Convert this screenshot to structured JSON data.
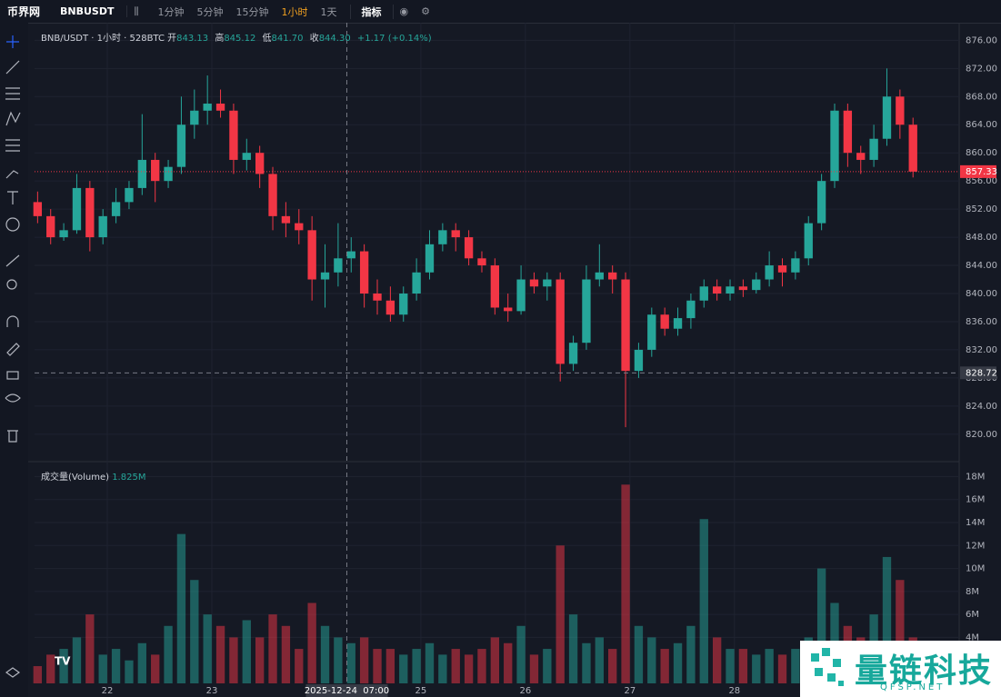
{
  "toolbar": {
    "logo": "币界网",
    "symbol": "BNBUSDT",
    "intervals": [
      "1分钟",
      "5分钟",
      "15分钟",
      "1小时",
      "1天"
    ],
    "active_interval": 3,
    "indicators": "指标"
  },
  "chart_data": {
    "type": "candlestick",
    "title": "BNB/USDT · 1小时 · 528BTC",
    "legend": {
      "open_label": "开",
      "open": 843.13,
      "high_label": "高",
      "high": 845.12,
      "low_label": "低",
      "low": {
        "value": 841.7,
        "label": "841.70"
      },
      "close_label": "收",
      "close": {
        "value": 844.3,
        "label": "844.30"
      },
      "change": "+1.17 (+0.14%)"
    },
    "up_color": "#26a69a",
    "down_color": "#f23645",
    "x": [
      -16,
      -13,
      -10,
      -7,
      -4,
      -1,
      2,
      5,
      8,
      11,
      14,
      17,
      20,
      23,
      26,
      29,
      32,
      35,
      38,
      41,
      44,
      47,
      50,
      53,
      56,
      59,
      62,
      65,
      68,
      71,
      74,
      77,
      80,
      83,
      86,
      89,
      92,
      95,
      98,
      101,
      104,
      107,
      110,
      113,
      116,
      119,
      122,
      125,
      128,
      131,
      134,
      137,
      140,
      143,
      146,
      149,
      152,
      155,
      158,
      161,
      164,
      167,
      170,
      173,
      176,
      179,
      182,
      185
    ],
    "open": [
      853,
      851,
      848,
      849,
      855,
      848,
      851,
      853,
      855,
      859,
      856,
      858,
      864,
      866,
      867,
      866,
      859,
      860,
      857,
      851,
      850,
      849,
      842,
      843,
      845,
      846,
      840,
      839,
      837,
      840,
      843,
      847,
      849,
      848,
      845,
      844,
      838,
      837.5,
      842,
      841,
      842,
      830,
      833,
      842,
      843,
      842,
      829,
      832,
      837,
      835,
      836.5,
      839,
      841,
      840,
      841,
      840.5,
      842,
      844,
      843,
      845,
      850,
      856,
      866,
      860,
      859,
      862,
      868,
      864
    ],
    "high": [
      854.5,
      852,
      850,
      857,
      856,
      852,
      855,
      856,
      865.5,
      860,
      859,
      868,
      869,
      871,
      869,
      867,
      862,
      861,
      858,
      853,
      852,
      851,
      847,
      850,
      848,
      847,
      842,
      841,
      841,
      845,
      849,
      850,
      850,
      849,
      846,
      845,
      840,
      844,
      843,
      843,
      843,
      834,
      844,
      847,
      844,
      843,
      833,
      838,
      838,
      838,
      840,
      842,
      842,
      842,
      842,
      843,
      846,
      845,
      846,
      851,
      857,
      867,
      867,
      861,
      864,
      872,
      869,
      865
    ],
    "low": [
      850,
      847,
      847.5,
      848.5,
      846,
      847,
      850,
      852,
      854,
      853,
      855,
      857,
      862,
      864,
      865,
      857,
      857.5,
      855,
      849,
      848,
      847,
      839,
      838,
      841,
      843,
      838,
      837,
      836,
      836,
      839,
      842,
      846,
      846,
      844,
      843,
      837,
      836,
      837,
      840,
      839,
      827.5,
      829,
      832,
      841,
      840,
      821,
      828,
      831,
      834,
      834,
      835,
      838,
      839,
      839,
      839.5,
      840,
      841,
      841,
      842,
      844,
      849,
      855,
      858,
      857,
      858,
      861,
      862,
      856.5
    ],
    "close": [
      851,
      848,
      849,
      855,
      848,
      851,
      853,
      855,
      859,
      856,
      858,
      864,
      866,
      867,
      866,
      859,
      860,
      857,
      851,
      850,
      849,
      842,
      843,
      845,
      846,
      840,
      839,
      837,
      840,
      843,
      847,
      849,
      848,
      845,
      844,
      838,
      837.5,
      842,
      841,
      842,
      830,
      833,
      842,
      843,
      842,
      829,
      832,
      837,
      835,
      836.5,
      839,
      841,
      840,
      841,
      840.5,
      842,
      844,
      843,
      845,
      850,
      856,
      866,
      860,
      859,
      862,
      868,
      864,
      857.33
    ],
    "xlim": [
      -16.7,
      195.6
    ],
    "xticks": [
      {
        "value": 0,
        "label": "22"
      },
      {
        "value": 24,
        "label": "23"
      },
      {
        "value": 72,
        "label": "25"
      },
      {
        "value": 96,
        "label": "26"
      },
      {
        "value": 120,
        "label": "27"
      },
      {
        "value": 144,
        "label": "28"
      }
    ],
    "ylim": [
      816.1,
      878.5
    ],
    "yticks": [
      {
        "value": 820,
        "label": "820.00"
      },
      {
        "value": 824,
        "label": "824.00"
      },
      {
        "value": 828,
        "label": "828.00"
      },
      {
        "value": 832,
        "label": "832.00"
      },
      {
        "value": 836,
        "label": "836.00"
      },
      {
        "value": 840,
        "label": "840.00"
      },
      {
        "value": 844,
        "label": "844.00"
      },
      {
        "value": 848,
        "label": "848.00"
      },
      {
        "value": 852,
        "label": "852.00"
      },
      {
        "value": 856,
        "label": "856.00"
      },
      {
        "value": 860,
        "label": "860.00"
      },
      {
        "value": 864,
        "label": "864.00"
      },
      {
        "value": 868,
        "label": "868.00"
      },
      {
        "value": 872,
        "label": "872.00"
      },
      {
        "value": 876,
        "label": "876.00"
      }
    ],
    "grid": true,
    "crosshair": {
      "x": 55,
      "x_label": "2025-12-24  07:00",
      "y": 828.72
    },
    "volume": {
      "title": "成交量(Volume)",
      "current": {
        "value": 1.825,
        "label": "1.825M"
      },
      "values": [
        1.5,
        2.5,
        3,
        4,
        6,
        2.5,
        3,
        2,
        3.5,
        2.5,
        5,
        13,
        9,
        6,
        5,
        4,
        5.5,
        4,
        6,
        5,
        3,
        7,
        5,
        4,
        3.5,
        4,
        3,
        3,
        2.5,
        3,
        3.5,
        2.5,
        3,
        2.5,
        3,
        4,
        3.5,
        5,
        2.5,
        3,
        12,
        6,
        3.5,
        4,
        3,
        17.3,
        5,
        4,
        3,
        3.5,
        5,
        14.3,
        4,
        3,
        3,
        2.5,
        3,
        2.5,
        3,
        4,
        10,
        7,
        5,
        4,
        6,
        11,
        9,
        4
      ],
      "ylim": [
        0,
        19.3
      ],
      "yticks": [
        {
          "value": 4,
          "label": "4M"
        },
        {
          "value": 6,
          "label": "6M"
        },
        {
          "value": 8,
          "label": "8M"
        },
        {
          "value": 10,
          "label": "10M"
        },
        {
          "value": 12,
          "label": "12M"
        },
        {
          "value": 14,
          "label": "14M"
        },
        {
          "value": 16,
          "label": "16M"
        },
        {
          "value": 18,
          "label": "18M"
        }
      ]
    }
  },
  "watermark": {
    "title": "量链科技",
    "site": "QFSP.NET"
  }
}
